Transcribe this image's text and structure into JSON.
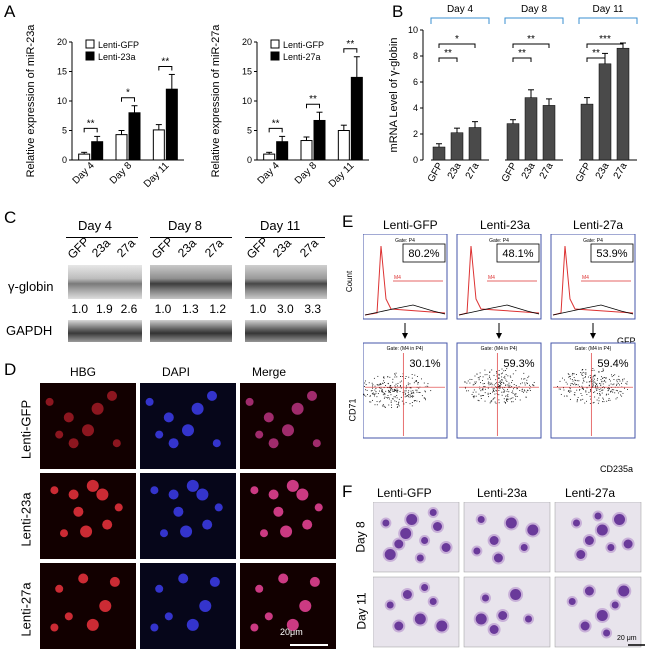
{
  "panel_labels": {
    "a": "A",
    "b": "B",
    "c": "C",
    "d": "D",
    "e": "E",
    "f": "F"
  },
  "chart_data": [
    {
      "type": "bar",
      "id": "A1",
      "categories": [
        "Day 4",
        "Day 8",
        "Day 11"
      ],
      "series": [
        {
          "name": "Lenti-GFP",
          "values": [
            1.0,
            4.3,
            5.1
          ],
          "errors": [
            0.3,
            0.7,
            0.9
          ],
          "color": "#ffffff"
        },
        {
          "name": "Lenti-23a",
          "values": [
            3.1,
            8.0,
            12.0
          ],
          "errors": [
            0.9,
            1.2,
            2.5
          ],
          "color": "#000000"
        }
      ],
      "significance": [
        "**",
        "*",
        "**"
      ],
      "ylabel": "Relative expression of miR-23a",
      "ylim": [
        0,
        20
      ],
      "yticks": [
        "0",
        "5",
        "10",
        "15",
        "20"
      ]
    },
    {
      "type": "bar",
      "id": "A2",
      "categories": [
        "Day 4",
        "Day 8",
        "Day 11"
      ],
      "series": [
        {
          "name": "Lenti-GFP",
          "values": [
            1.0,
            3.3,
            5.0
          ],
          "errors": [
            0.3,
            0.6,
            0.9
          ],
          "color": "#ffffff"
        },
        {
          "name": "Lenti-27a",
          "values": [
            3.1,
            6.7,
            14.0
          ],
          "errors": [
            0.9,
            1.4,
            3.5
          ],
          "color": "#000000"
        }
      ],
      "significance": [
        "**",
        "**",
        "**"
      ],
      "ylabel": "Relative expression of miR-27a",
      "ylim": [
        0,
        20
      ],
      "yticks": [
        "0",
        "5",
        "10",
        "15",
        "20"
      ]
    },
    {
      "type": "bar",
      "id": "B",
      "groups": [
        "Day 4",
        "Day 8",
        "Day 11"
      ],
      "categories": [
        "GFP",
        "23a",
        "27a"
      ],
      "values": [
        [
          1.0,
          2.1,
          2.5
        ],
        [
          2.8,
          4.8,
          4.2
        ],
        [
          4.3,
          7.4,
          8.6
        ]
      ],
      "errors": [
        [
          0.25,
          0.35,
          0.45
        ],
        [
          0.3,
          0.6,
          0.5
        ],
        [
          0.5,
          0.8,
          0.4
        ]
      ],
      "significance": [
        [
          "**",
          "*"
        ],
        [
          "**",
          "**"
        ],
        [
          "**",
          "***"
        ]
      ],
      "ylabel": "mRNA Level of γ-globin",
      "ylim": [
        0,
        10
      ],
      "yticks": [
        "0",
        "2",
        "4",
        "6",
        "8",
        "10"
      ]
    }
  ],
  "panelC": {
    "days": [
      "Day 4",
      "Day 8",
      "Day 11"
    ],
    "lanes": [
      "GFP",
      "23a",
      "27a"
    ],
    "row1_label": "γ-globin",
    "row2_label": "GAPDH",
    "values": [
      [
        "1.0",
        "1.9",
        "2.6"
      ],
      [
        "1.0",
        "1.3",
        "1.2"
      ],
      [
        "1.0",
        "3.0",
        "3.3"
      ]
    ]
  },
  "panelD": {
    "cols": [
      "HBG",
      "DAPI",
      "Merge"
    ],
    "rows": [
      "Lenti-GFP",
      "Lenti-23a",
      "Lenti-27a"
    ],
    "scale": "20μm"
  },
  "panelE": {
    "titles": [
      "Lenti-GFP",
      "Lenti-23a",
      "Lenti-27a"
    ],
    "gate_top": "Gate: P4",
    "gate_bottom": "Gate: (M4 in P4)",
    "top_pct": [
      "80.2%",
      "48.1%",
      "53.9%"
    ],
    "bottom_pct": [
      "30.1%",
      "59.3%",
      "59.4%"
    ],
    "m4_label": "M4",
    "count_label": "Count",
    "gfp_label": "GFP",
    "cd71_label": "CD71",
    "cd235a_label": "CD235a"
  },
  "panelF": {
    "cols": [
      "Lenti-GFP",
      "Lenti-23a",
      "Lenti-27a"
    ],
    "rows": [
      "Day 8",
      "Day 11"
    ],
    "scale": "20 μm"
  }
}
